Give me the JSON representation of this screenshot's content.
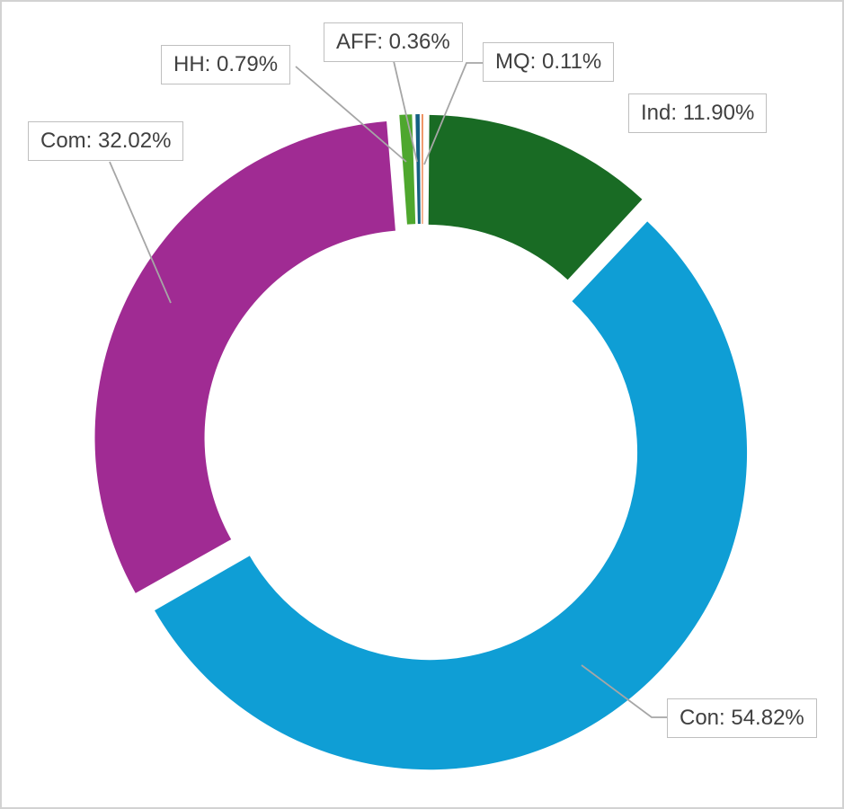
{
  "chart_data": {
    "type": "pie",
    "subtype": "donut",
    "title": "",
    "categories": [
      "AFF",
      "MQ",
      "Ind",
      "Con",
      "Com",
      "HH"
    ],
    "values": [
      0.36,
      0.11,
      11.9,
      54.82,
      32.02,
      0.79
    ],
    "unit": "%",
    "slices": [
      {
        "name": "AFF",
        "value": 0.36,
        "label": "AFF: 0.36%",
        "color": "#156082"
      },
      {
        "name": "MQ",
        "value": 0.11,
        "label": "MQ: 0.11%",
        "color": "#e97132"
      },
      {
        "name": "Ind",
        "value": 11.9,
        "label": "Ind: 11.90%",
        "color": "#196b24"
      },
      {
        "name": "Con",
        "value": 54.82,
        "label": "Con: 54.82%",
        "color": "#0f9ed5"
      },
      {
        "name": "Com",
        "value": 32.02,
        "label": "Com: 32.02%",
        "color": "#a02b93"
      },
      {
        "name": "HH",
        "value": 0.79,
        "label": "HH: 0.79%",
        "color": "#4ea72e"
      }
    ],
    "start_angle_deg": 0,
    "direction": "clockwise",
    "donut_hole_ratio": 0.654,
    "exploded": true,
    "legend": "none",
    "grid": "off",
    "label_style": {
      "text_color": "#404040",
      "background": "#ffffff",
      "border_color": "#bfbfbf",
      "leader_line_color": "#a6a6a6"
    }
  },
  "frame": {
    "background": "#ffffff",
    "border_color": "#d2d2d2"
  }
}
